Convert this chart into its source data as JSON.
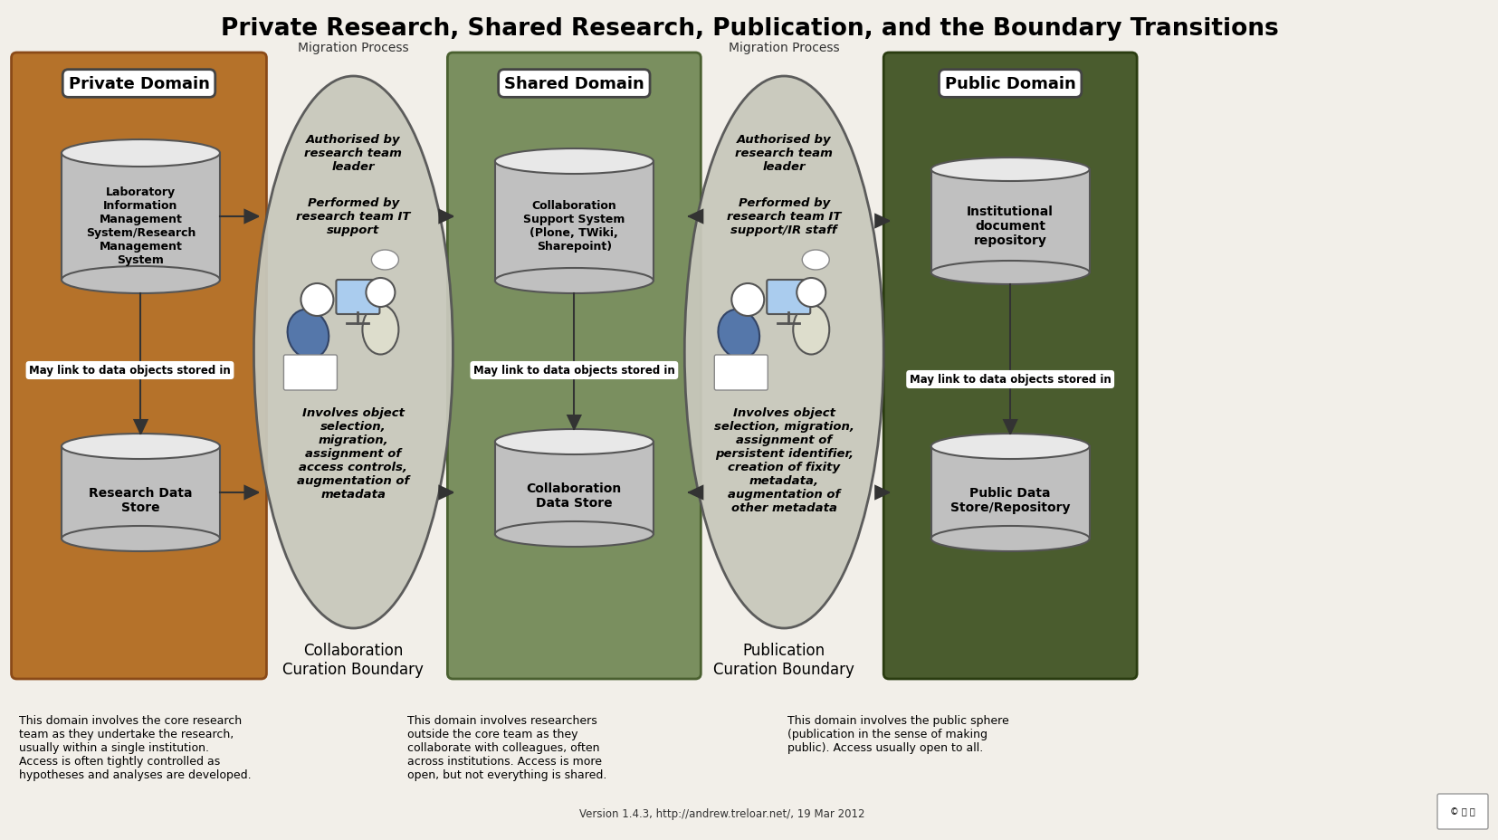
{
  "title": "Private Research, Shared Research, Publication, and the Boundary Transitions",
  "title_fontsize": 19,
  "bg_color": "#f2efe9",
  "private_domain_color": "#b5722a",
  "private_domain_label": "Private Domain",
  "shared_domain_color": "#7a8f5f",
  "shared_domain_label": "Shared Domain",
  "public_domain_color": "#4a5c2e",
  "public_domain_label": "Public Domain",
  "migration_label": "Migration Process",
  "collab_boundary_label": "Collaboration\nCuration Boundary",
  "pub_boundary_label": "Publication\nCuration Boundary",
  "private_desc": "This domain involves the core research\nteam as they undertake the research,\nusually within a single institution.\nAccess is often tightly controlled as\nhypotheses and analyses are developed.",
  "shared_desc": "This domain involves researchers\noutside the core team as they\ncollaborate with colleagues, often\nacross institutions. Access is more\nopen, but not everything is shared.",
  "public_desc": "This domain involves the public sphere\n(publication in the sense of making\npublic). Access usually open to all.",
  "version_text": "Version 1.4.3, http://andrew.treloar.net/, 19 Mar 2012",
  "lims_label": "Laboratory\nInformation\nManagement\nSystem/Research\nManagement\nSystem",
  "research_ds_label": "Research Data\nStore",
  "may_link_label": "May link to data objects stored in",
  "collab_support_label": "Collaboration\nSupport System\n(Plone, TWiki,\nSharepoint)",
  "collab_ds_label": "Collaboration\nData Store",
  "institutional_label": "Institutional\ndocument\nrepository",
  "public_ds_label": "Public Data\nStore/Repository",
  "auth_label1": "Authorised by\nresearch team\nleader",
  "perf_label1": "Performed by\nresearch team IT\nsupport",
  "inv_label1": "Involves object\nselection,\nmigration,\nassignment of\naccess controls,\naugmentation of\nmetadata",
  "auth_label2": "Authorised by\nresearch team\nleader",
  "perf_label2": "Performed by\nresearch team IT\nsupport/IR staff",
  "inv_label2": "Involves object\nselection, migration,\nassignment of\npersistent identifier,\ncreation of fixity\nmetadata,\naugmentation of\nother metadata",
  "oval_color": "#c8c8bc",
  "oval_edge": "#555555",
  "cyl_body": "#c0c0c0",
  "cyl_top": "#e8e8e8",
  "cyl_edge": "#555555",
  "arrow_color": "#333333",
  "domain_label_box_color": "white",
  "may_link_box_color": "white"
}
